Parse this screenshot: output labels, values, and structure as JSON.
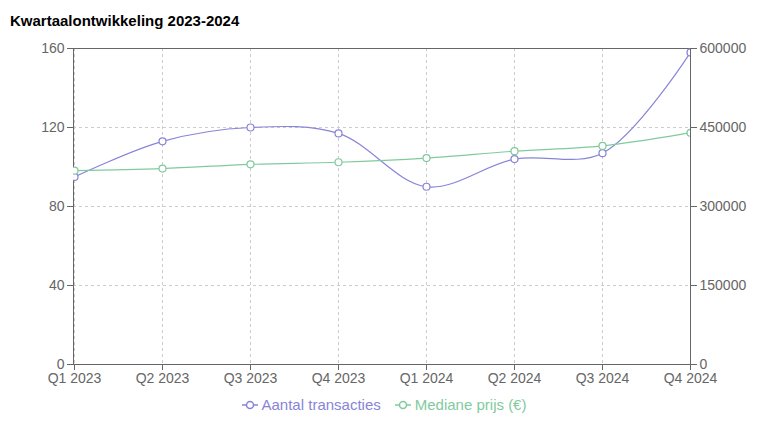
{
  "chart_data": {
    "type": "line",
    "title": "Kwartaalontwikkeling 2023-2024",
    "categories": [
      "Q1 2023",
      "Q2 2023",
      "Q3 2023",
      "Q4 2023",
      "Q1 2024",
      "Q2 2024",
      "Q3 2024",
      "Q4 2024"
    ],
    "series": [
      {
        "name": "Aantal transacties",
        "color": "#8884d8",
        "marker": "circle",
        "values": [
          95,
          113,
          120,
          117,
          90,
          104,
          107,
          158
        ]
      },
      {
        "name": "Mediane prijs (€)",
        "color": "#82ca9d",
        "marker": "circle",
        "axis": "y2",
        "values": [
          368000,
          372000,
          380000,
          384000,
          392000,
          405000,
          415000,
          440000
        ]
      }
    ],
    "ylim": [
      0,
      160
    ],
    "yticks": [
      0,
      40,
      80,
      120,
      160
    ],
    "y2lim": [
      0,
      600000
    ],
    "y2ticks": [
      0,
      150000,
      300000,
      450000,
      600000
    ],
    "grid": true,
    "legend": "bottom"
  }
}
